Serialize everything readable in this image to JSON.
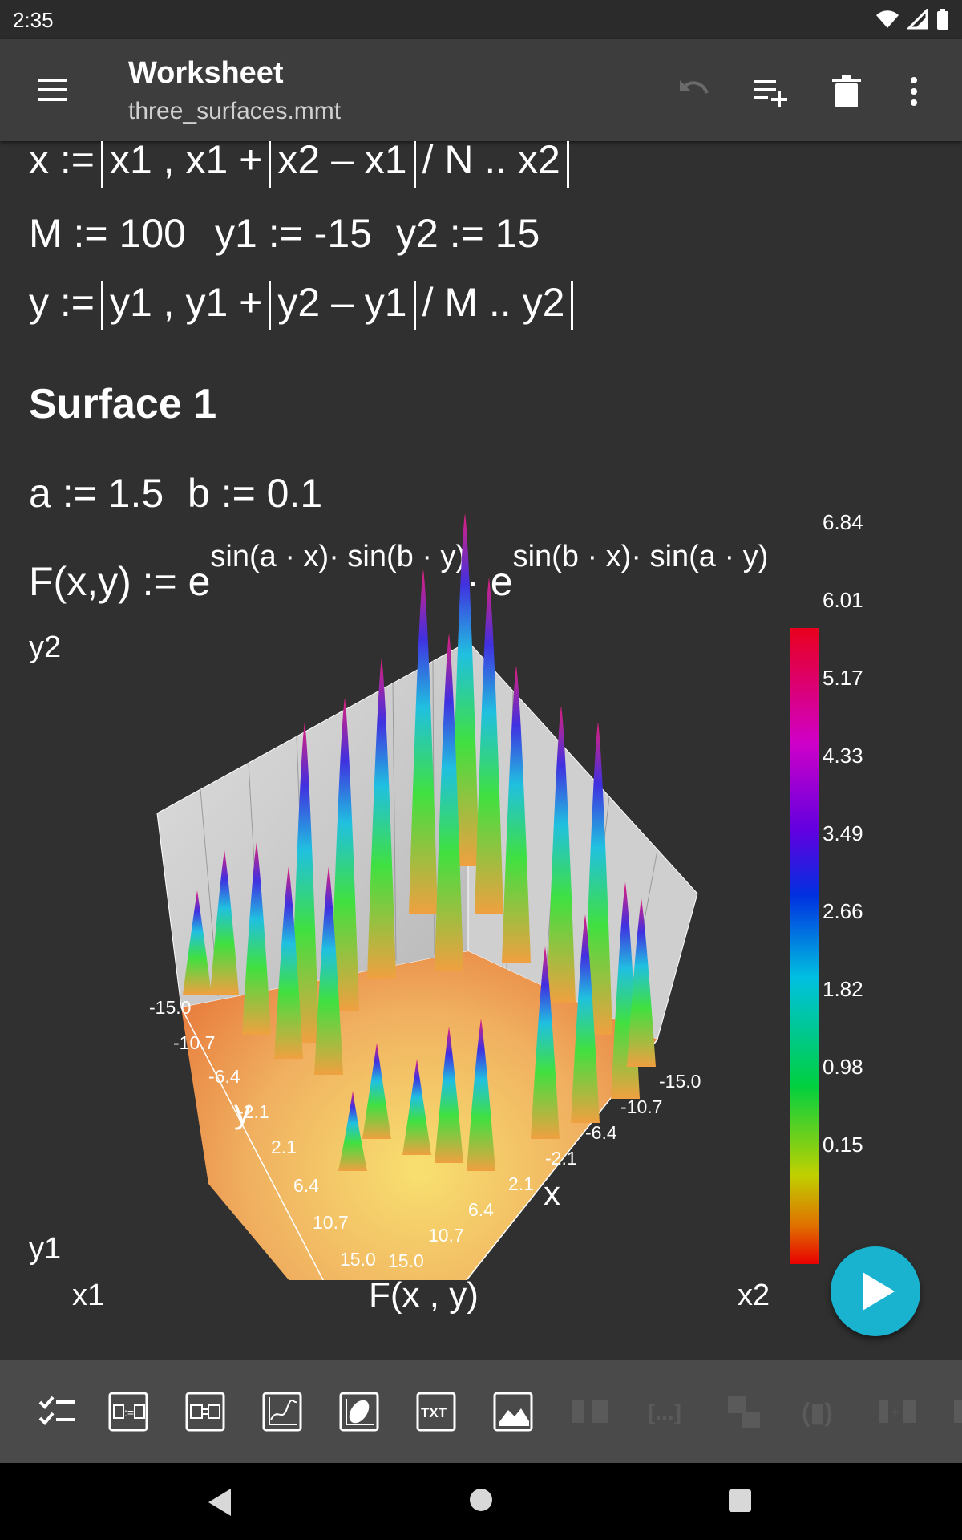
{
  "status": {
    "time": "2:35"
  },
  "appbar": {
    "title": "Worksheet",
    "subtitle": "three_surfaces.mmt"
  },
  "math": {
    "line_x_lhs": "x :=",
    "line_x_a": "x1 , x1 +",
    "line_x_b": "x2 – x1",
    "line_x_c": "/ N .. x2",
    "line_M": "M := 100",
    "line_y1": "y1 := -15",
    "line_y2": "y2 := 15",
    "line_y_lhs": "y :=",
    "line_y_a": "y1 , y1 +",
    "line_y_b": "y2 – y1",
    "line_y_c": "/ M .. y2",
    "heading": "Surface 1",
    "line_a": "a := 1.5",
    "line_b": "b := 0.1",
    "F_lhs": "F(x,y) := e",
    "F_exp1": "sin(a · x)· sin(b · y)",
    "F_mid": "· e",
    "F_exp2": "sin(b · x)· sin(a · y)"
  },
  "plot": {
    "y_top": "y2",
    "y_bottom": "y1",
    "x_left": "x1",
    "x_right": "x2",
    "func": "F(x , y)",
    "axis_x": "x",
    "axis_y": "y",
    "y_ticks": [
      "-15.0",
      "-10.7",
      "-6.4",
      "-2.1",
      "2.1",
      "6.4",
      "10.7",
      "15.0"
    ],
    "x_ticks": [
      "-15.0",
      "-10.7",
      "-6.4",
      "-2.1",
      "2.1",
      "6.4",
      "10.7",
      "15.0"
    ],
    "colorbar_ticks": [
      "6.84",
      "6.01",
      "5.17",
      "4.33",
      "3.49",
      "2.66",
      "1.82",
      "0.98",
      "0.15"
    ]
  },
  "icons": {
    "menu": "menu-icon",
    "undo": "undo-icon",
    "add": "playlist-add-icon",
    "delete": "delete-icon",
    "more": "more-vert-icon",
    "run": "play-icon"
  }
}
